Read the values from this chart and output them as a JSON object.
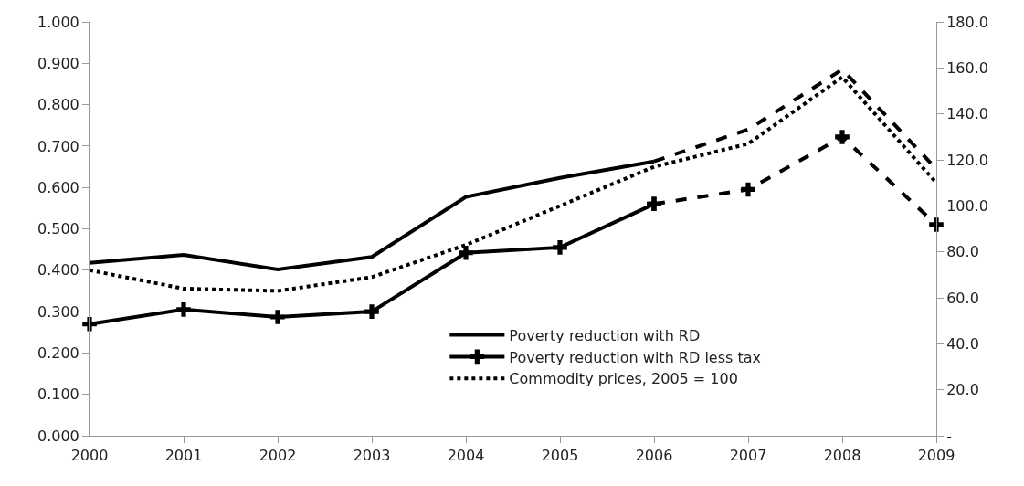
{
  "chart_data": {
    "type": "line",
    "x": [
      2000,
      2001,
      2002,
      2003,
      2004,
      2005,
      2006,
      2007,
      2008,
      2009
    ],
    "xlim": [
      2000,
      2009
    ],
    "xticks": [
      2000,
      2001,
      2002,
      2003,
      2004,
      2005,
      2006,
      2007,
      2008,
      2009
    ],
    "ylim": [
      0,
      1
    ],
    "yticks": [
      {
        "value": 0,
        "label": "0.000"
      },
      {
        "value": 0.1,
        "label": "0.100"
      },
      {
        "value": 0.2,
        "label": "0.200"
      },
      {
        "value": 0.3,
        "label": "0.300"
      },
      {
        "value": 0.4,
        "label": "0.400"
      },
      {
        "value": 0.5,
        "label": "0.500"
      },
      {
        "value": 0.6,
        "label": "0.600"
      },
      {
        "value": 0.7,
        "label": "0.700"
      },
      {
        "value": 0.8,
        "label": "0.800"
      },
      {
        "value": 0.9,
        "label": "0.900"
      },
      {
        "value": 1,
        "label": "1.000"
      }
    ],
    "y2lim": [
      0,
      180
    ],
    "y2ticks": [
      {
        "value": 0,
        "label": "-"
      },
      {
        "value": 20,
        "label": "20.0"
      },
      {
        "value": 40,
        "label": "40.0"
      },
      {
        "value": 60,
        "label": "60.0"
      },
      {
        "value": 80,
        "label": "80.0"
      },
      {
        "value": 100,
        "label": "100.0"
      },
      {
        "value": 120,
        "label": "120.0"
      },
      {
        "value": 140,
        "label": "140.0"
      },
      {
        "value": 160,
        "label": "160.0"
      },
      {
        "value": 180,
        "label": "180.0"
      }
    ],
    "grid": false,
    "legend": "bottom right",
    "series": [
      {
        "name": "Poverty reduction with RD",
        "color": "#000000",
        "line_style": "solid",
        "marker": "none",
        "values": [
          0.418,
          0.437,
          0.402,
          0.432,
          0.577,
          0.623,
          0.663,
          null,
          null,
          null
        ]
      },
      {
        "color": "#000000",
        "line_style": "dashed",
        "marker": "none",
        "values": [
          null,
          null,
          null,
          null,
          null,
          null,
          0.663,
          0.74,
          0.885,
          0.645
        ]
      },
      {
        "name": "Poverty reduction with RD less tax",
        "color": "#000000",
        "line_style": "solid",
        "marker": "cross",
        "values": [
          0.27,
          0.305,
          0.287,
          0.3,
          0.442,
          0.455,
          0.56,
          null,
          null,
          null
        ]
      },
      {
        "color": "#000000",
        "line_style": "dashed",
        "marker": "cross",
        "values": [
          null,
          null,
          null,
          null,
          null,
          null,
          0.56,
          0.595,
          0.722,
          0.51
        ]
      },
      {
        "name": "Commodity prices, 2005 = 100",
        "color": "#000000",
        "line_style": "dotted",
        "marker": "none",
        "axis": "y2",
        "values": [
          72,
          64,
          63,
          69,
          83,
          100,
          117,
          127,
          156,
          110
        ]
      }
    ]
  }
}
